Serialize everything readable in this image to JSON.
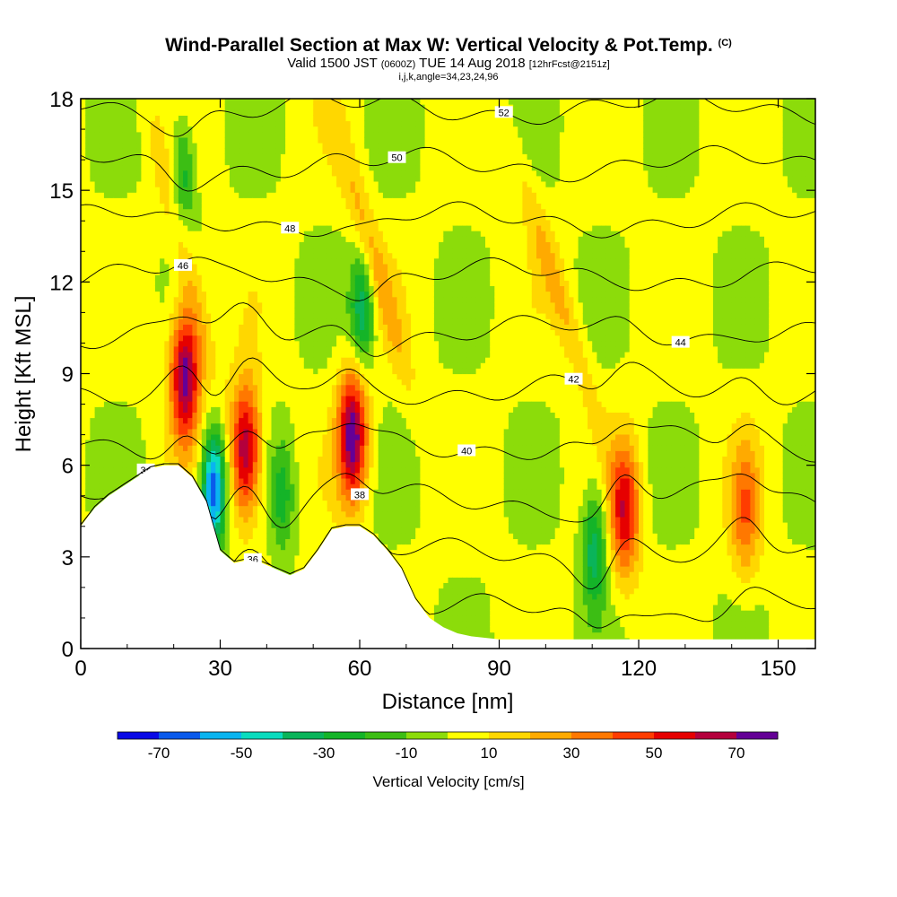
{
  "title": {
    "main": "Wind-Parallel Section at Max W: Vertical Velocity & Pot.Temp.",
    "copyright": "(C)",
    "valid_prefix": "Valid 1500 JST",
    "utc": "(0600Z)",
    "valid_date": "TUE 14 Aug 2018",
    "forecast": "[12hrFcst@2151z]",
    "indices": "i,j,k,angle=34,23,24,96"
  },
  "colors": {
    "terrain": "#ffffff",
    "frame": "#000000",
    "contour": "#000000"
  },
  "chart_data": {
    "type": "heatmap",
    "field": "vertical velocity (color fill) with potential temperature contours",
    "xlabel": "Distance [nm]",
    "ylabel": "Height [Kft MSL]",
    "xlim": [
      0,
      158
    ],
    "ylim": [
      0,
      18
    ],
    "xticks": [
      0,
      30,
      60,
      90,
      120,
      150
    ],
    "yticks": [
      0,
      3,
      6,
      9,
      12,
      15,
      18
    ],
    "colorbar": {
      "label": "Vertical Velocity [cm/s]",
      "bounds": [
        -80,
        -70,
        -60,
        -50,
        -40,
        -30,
        -20,
        -10,
        0,
        10,
        20,
        30,
        40,
        50,
        60,
        70,
        80
      ],
      "tick_labels": [
        "-70",
        "-50",
        "-30",
        "-10",
        "10",
        "30",
        "50",
        "70"
      ],
      "tick_values": [
        -70,
        -50,
        -30,
        -10,
        10,
        30,
        50,
        70
      ],
      "colors": [
        "#0a0ae6",
        "#0a5aeb",
        "#0ab4f0",
        "#0adcbe",
        "#0ab45a",
        "#14b428",
        "#3cbe14",
        "#8cdc0a",
        "#ffff00",
        "#ffd700",
        "#ffaa00",
        "#ff7800",
        "#ff3c00",
        "#e60000",
        "#b4003c",
        "#640096"
      ]
    },
    "terrain_profile": {
      "x": [
        0,
        3,
        6,
        9,
        12,
        15,
        18,
        21,
        24,
        27,
        30,
        33,
        36,
        39,
        42,
        45,
        48,
        51,
        54,
        57,
        60,
        63,
        66,
        69,
        72,
        75,
        78,
        81,
        84,
        90,
        100,
        110,
        120,
        130,
        140,
        150,
        158
      ],
      "height": [
        4.0,
        4.6,
        5.0,
        5.3,
        5.6,
        5.9,
        6.0,
        6.0,
        5.6,
        4.8,
        3.2,
        2.8,
        2.9,
        2.8,
        2.6,
        2.4,
        2.6,
        3.2,
        3.9,
        4.0,
        4.0,
        3.7,
        3.2,
        2.6,
        1.6,
        1.0,
        0.7,
        0.5,
        0.4,
        0.3,
        0.3,
        0.3,
        0.3,
        0.3,
        0.3,
        0.3,
        0.3
      ]
    },
    "updraft_cores": [
      {
        "x": 22.5,
        "z": 9.0,
        "w": 75
      },
      {
        "x": 35.5,
        "z": 6.5,
        "w": 70
      },
      {
        "x": 58.5,
        "z": 7.0,
        "w": 75
      },
      {
        "x": 117.0,
        "z": 4.5,
        "w": 55
      },
      {
        "x": 143.0,
        "z": 4.5,
        "w": 35
      }
    ],
    "downdraft_cores": [
      {
        "x": 28.5,
        "z": 5.2,
        "w": -70
      },
      {
        "x": 43.5,
        "z": 5.0,
        "w": -25
      },
      {
        "x": 60.5,
        "z": 11.0,
        "w": -40
      },
      {
        "x": 110.5,
        "z": 3.3,
        "w": -40
      },
      {
        "x": 22.0,
        "z": 15.5,
        "w": -30
      }
    ],
    "theta_contours": [
      {
        "theta": 34,
        "label": "34"
      },
      {
        "theta": 36,
        "label": "36"
      },
      {
        "theta": 38,
        "label": "38"
      },
      {
        "theta": 40,
        "label": "40"
      },
      {
        "theta": 42,
        "label": "42"
      },
      {
        "theta": 44,
        "label": "44"
      },
      {
        "theta": 46,
        "label": "46"
      },
      {
        "theta": 48,
        "label": "48"
      },
      {
        "theta": 50,
        "label": "50"
      },
      {
        "theta": 52,
        "label": "52"
      }
    ]
  }
}
